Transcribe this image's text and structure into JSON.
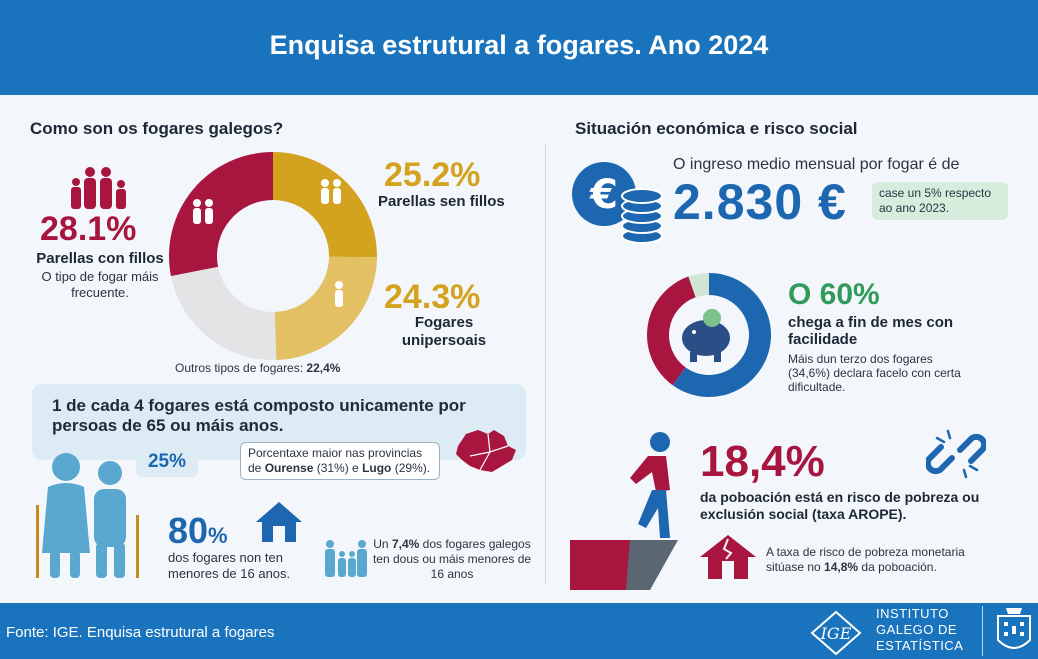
{
  "header": {
    "title": "Enquisa estrutural a fogares. Ano 2024"
  },
  "left": {
    "title": "Como son os fogares galegos?",
    "couples_with_kids": {
      "pct": "28.1%",
      "label": "Parellas con fillos",
      "sub": "O tipo de fogar máis frecuente.",
      "share": 28.1
    },
    "couples_no_kids": {
      "pct": "25.2%",
      "label": "Parellas sen fillos",
      "share": 25.2
    },
    "single": {
      "pct": "24.3%",
      "label": "Fogares unipersoais",
      "share": 24.3
    },
    "others": {
      "label": "Outros tipos de fogares:",
      "pct": "22,4%",
      "share": 22.4
    },
    "elder": {
      "headline": "1 de cada 4 fogares está composto unicamente por persoas de 65 ou máis anos.",
      "pct": "25%",
      "prov_text_a": "Porcentaxe maior nas provincias de ",
      "prov_ourense": "Ourense",
      "prov_text_b": " (31%) e ",
      "prov_lugo": "Lugo",
      "prov_text_c": " (29%)."
    },
    "no_kids16": {
      "pct": "80",
      "pct_sign": "%",
      "label": "dos fogares non ten menores de 16 anos."
    },
    "kids16": {
      "a": "Un ",
      "pct": "7,4%",
      "b": " dos fogares galegos ten dous ou máis menores de 16 anos"
    }
  },
  "right": {
    "title": "Situación económica e risco social",
    "income": {
      "label": "O ingreso medio mensual por fogar é de",
      "value": "2.830 €",
      "note": "case un 5% respecto ao ano 2023."
    },
    "finmes": {
      "pct": "O 60%",
      "label": "chega a fin de mes con facilidade",
      "sub": "Máis dun terzo dos fogares (34,6%) declara facelo con certa dificultade.",
      "share": 60,
      "difficulty_share": 34.6
    },
    "arope": {
      "pct": "18,4%",
      "label": "da poboación está en risco de pobreza ou exclusión social (taxa AROPE).",
      "mon_a": "A taxa de risco de pobreza monetaria sitúase no ",
      "mon_pct": "14,8%",
      "mon_b": " da poboación."
    }
  },
  "footer": {
    "source": "Fonte: IGE. Enquisa estrutural a fogares",
    "institute_line1": "INSTITUTO",
    "institute_line2": "GALEGO DE",
    "institute_line3": "ESTATÍSTICA",
    "ige_logo_text": "IGE"
  },
  "colors": {
    "blue": "#1a74bd",
    "red": "#a8163f",
    "gold": "#d3a21f",
    "lightgold": "#e2c063",
    "grey": "#e3e4e6",
    "green": "#2f9a5a"
  }
}
